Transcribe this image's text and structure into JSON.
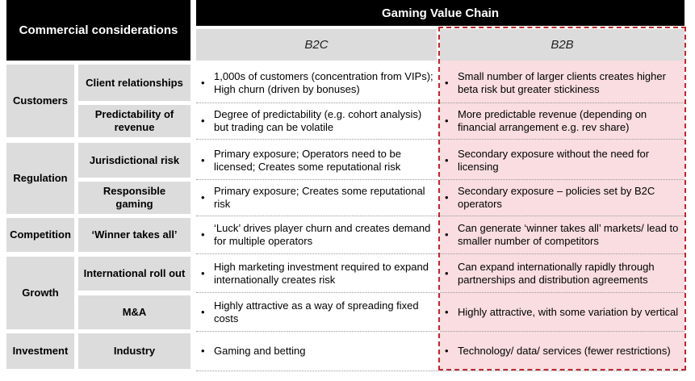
{
  "header": {
    "title": "Commercial considerations",
    "chain_title": "Gaming Value Chain",
    "col_b2c": "B2C",
    "col_b2b": "B2B"
  },
  "groups": [
    {
      "label": "Customers"
    },
    {
      "label": "Regulation"
    },
    {
      "label": "Competition"
    },
    {
      "label": "Growth"
    },
    {
      "label": "Investment"
    }
  ],
  "rows": [
    {
      "label": "Client relationships",
      "b2c": "1,000s of customers (concentration from VIPs); High churn (driven by bonuses)",
      "b2b": "Small number of larger clients creates higher beta risk but greater stickiness"
    },
    {
      "label": "Predictability of revenue",
      "b2c": "Degree of predictability (e.g. cohort analysis) but trading can be volatile",
      "b2b": "More predictable revenue (depending on financial arrangement e.g. rev share)"
    },
    {
      "label": "Jurisdictional risk",
      "b2c": "Primary exposure; Operators need to be licensed; Creates some reputational risk",
      "b2b": "Secondary exposure without the need for licensing"
    },
    {
      "label": "Responsible gaming",
      "b2c": "Primary exposure; Creates some reputational risk",
      "b2b": "Secondary exposure – policies set by B2C operators"
    },
    {
      "label": "‘Winner takes all’",
      "b2c": "‘Luck’ drives player churn and creates demand for multiple operators",
      "b2b": "Can generate ‘winner takes all’ markets/ lead to smaller number of competitors"
    },
    {
      "label": "International roll out",
      "b2c": "High marketing investment required to expand internationally creates risk",
      "b2b": "Can expand internationally rapidly through partnerships and distribution agreements"
    },
    {
      "label": "M&A",
      "b2c": "Highly attractive as a way of spreading fixed costs",
      "b2b": "Highly attractive, with some variation by vertical"
    },
    {
      "label": "Industry",
      "b2c": "Gaming and betting",
      "b2b": "Technology/ data/ services (fewer restrictions)"
    }
  ],
  "bullet": "•",
  "colors": {
    "accent": "#c0272d",
    "b2b_bg": "#f9dde0",
    "header_bg": "#000000",
    "cell_bg": "#dcdcdc"
  }
}
